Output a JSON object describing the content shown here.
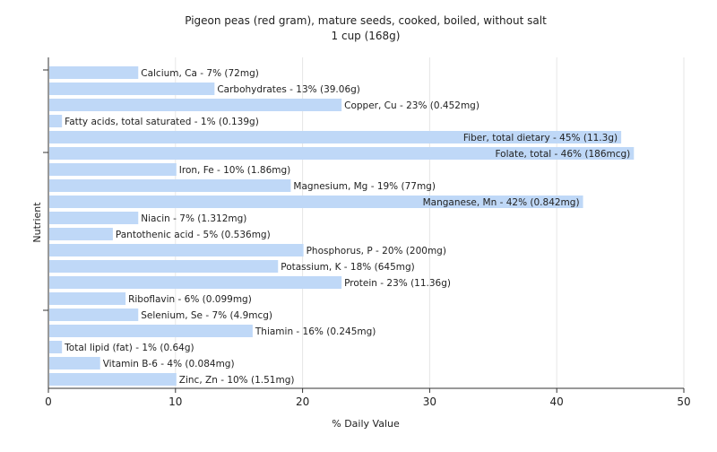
{
  "chart_data": {
    "type": "bar",
    "orientation": "horizontal",
    "title": "Pigeon peas (red gram), mature seeds, cooked, boiled, without salt",
    "subtitle": "1 cup (168g)",
    "xlabel": "% Daily Value",
    "ylabel": "Nutrient",
    "xlim": [
      0,
      50
    ],
    "xticks": [
      "0",
      "10",
      "20",
      "30",
      "40",
      "50"
    ],
    "grid": "vertical",
    "bar_color": "#bfd8f7",
    "categories": [
      "Calcium, Ca",
      "Carbohydrates",
      "Copper, Cu",
      "Fatty acids, total saturated",
      "Fiber, total dietary",
      "Folate, total",
      "Iron, Fe",
      "Magnesium, Mg",
      "Manganese, Mn",
      "Niacin",
      "Pantothenic acid",
      "Phosphorus, P",
      "Potassium, K",
      "Protein",
      "Riboflavin",
      "Selenium, Se",
      "Thiamin",
      "Total lipid (fat)",
      "Vitamin B-6",
      "Zinc, Zn"
    ],
    "values": [
      7,
      13,
      23,
      1,
      45,
      46,
      10,
      19,
      42,
      7,
      5,
      20,
      18,
      23,
      6,
      7,
      16,
      1,
      4,
      10
    ],
    "labels": [
      "Calcium, Ca - 7% (72mg)",
      "Carbohydrates - 13% (39.06g)",
      "Copper, Cu - 23% (0.452mg)",
      "Fatty acids, total saturated - 1% (0.139g)",
      "Fiber, total dietary - 45% (11.3g)",
      "Folate, total - 46% (186mcg)",
      "Iron, Fe - 10% (1.86mg)",
      "Magnesium, Mg - 19% (77mg)",
      "Manganese, Mn - 42% (0.842mg)",
      "Niacin - 7% (1.312mg)",
      "Pantothenic acid - 5% (0.536mg)",
      "Phosphorus, P - 20% (200mg)",
      "Potassium, K - 18% (645mg)",
      "Protein - 23% (11.36g)",
      "Riboflavin - 6% (0.099mg)",
      "Selenium, Se - 7% (4.9mcg)",
      "Thiamin - 16% (0.245mg)",
      "Total lipid (fat) - 1% (0.64g)",
      "Vitamin B-6 - 4% (0.084mg)",
      "Zinc, Zn - 10% (1.51mg)"
    ]
  }
}
